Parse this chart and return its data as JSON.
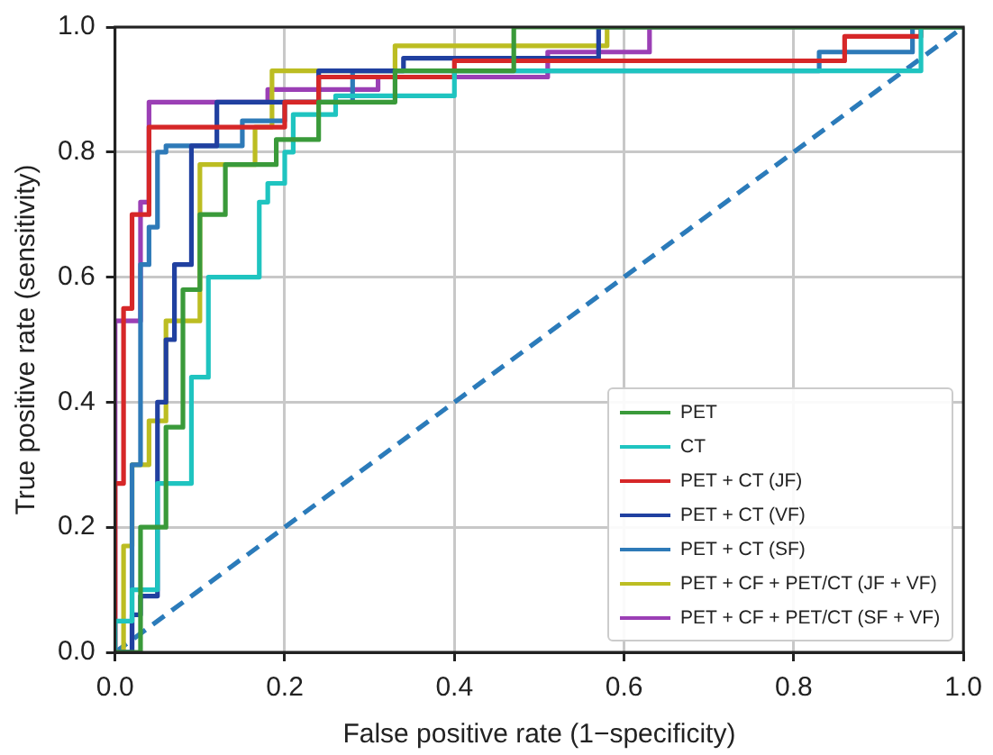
{
  "chart_data": {
    "type": "line",
    "xlabel": "False positive rate (1−specificity)",
    "ylabel": "True positive rate (sensitivity)",
    "xlim": [
      0,
      1
    ],
    "ylim": [
      0,
      1
    ],
    "xticks": [
      {
        "value": 0,
        "label": "0.0"
      },
      {
        "value": 0.2,
        "label": "0.2"
      },
      {
        "value": 0.4,
        "label": "0.4"
      },
      {
        "value": 0.6,
        "label": "0.6"
      },
      {
        "value": 0.8,
        "label": "0.8"
      },
      {
        "value": 1,
        "label": "1.0"
      }
    ],
    "yticks": [
      {
        "value": 0,
        "label": "0.0"
      },
      {
        "value": 0.2,
        "label": "0.2"
      },
      {
        "value": 0.4,
        "label": "0.4"
      },
      {
        "value": 0.6,
        "label": "0.6"
      },
      {
        "value": 0.8,
        "label": "0.8"
      },
      {
        "value": 1,
        "label": "1.0"
      }
    ],
    "grid": true,
    "legend": "bottom right",
    "marker": "none",
    "series": [
      {
        "name": "PET",
        "color": "#3a9a3a",
        "x": [
          0,
          0.03,
          0.03,
          0.06,
          0.06,
          0.08,
          0.08,
          0.1,
          0.1,
          0.13,
          0.13,
          0.19,
          0.19,
          0.24,
          0.24,
          0.33,
          0.33,
          0.47,
          0.47,
          1
        ],
        "values": [
          0,
          0,
          0.2,
          0.2,
          0.36,
          0.36,
          0.58,
          0.58,
          0.7,
          0.7,
          0.78,
          0.78,
          0.82,
          0.82,
          0.88,
          0.88,
          0.93,
          0.93,
          1,
          1
        ]
      },
      {
        "name": "CT",
        "color": "#1fc4c0",
        "x": [
          0,
          0,
          0.02,
          0.02,
          0.05,
          0.05,
          0.09,
          0.09,
          0.11,
          0.11,
          0.17,
          0.17,
          0.18,
          0.18,
          0.2,
          0.2,
          0.21,
          0.21,
          0.26,
          0.26,
          0.4,
          0.4,
          0.95,
          0.95,
          1
        ],
        "values": [
          0,
          0.05,
          0.05,
          0.1,
          0.1,
          0.27,
          0.27,
          0.44,
          0.44,
          0.6,
          0.6,
          0.72,
          0.72,
          0.75,
          0.75,
          0.8,
          0.8,
          0.86,
          0.86,
          0.89,
          0.89,
          0.93,
          0.93,
          1,
          1
        ]
      },
      {
        "name": "PET + CT (JF)",
        "color": "#d62728",
        "x": [
          0,
          0,
          0.01,
          0.01,
          0.02,
          0.02,
          0.04,
          0.04,
          0.2,
          0.2,
          0.24,
          0.24,
          0.4,
          0.4,
          0.86,
          0.86,
          0.95,
          0.95,
          1
        ],
        "values": [
          0,
          0.27,
          0.27,
          0.55,
          0.55,
          0.7,
          0.7,
          0.84,
          0.84,
          0.88,
          0.88,
          0.92,
          0.92,
          0.946,
          0.946,
          0.985,
          0.985,
          1,
          1
        ]
      },
      {
        "name": "PET + CT (VF)",
        "color": "#2040a0",
        "x": [
          0,
          0.02,
          0.02,
          0.03,
          0.03,
          0.05,
          0.05,
          0.06,
          0.06,
          0.07,
          0.07,
          0.09,
          0.09,
          0.12,
          0.12,
          0.24,
          0.24,
          0.34,
          0.34,
          0.57,
          0.57,
          1
        ],
        "values": [
          0,
          0,
          0.06,
          0.06,
          0.09,
          0.09,
          0.4,
          0.4,
          0.5,
          0.5,
          0.62,
          0.62,
          0.81,
          0.81,
          0.88,
          0.88,
          0.93,
          0.93,
          0.95,
          0.95,
          1,
          1
        ]
      },
      {
        "name": "PET + CT (SF)",
        "color": "#2e7ab8",
        "x": [
          0,
          0.02,
          0.02,
          0.03,
          0.03,
          0.04,
          0.04,
          0.05,
          0.05,
          0.06,
          0.06,
          0.15,
          0.15,
          0.2,
          0.2,
          0.28,
          0.28,
          0.83,
          0.83,
          0.94,
          0.94,
          1
        ],
        "values": [
          0,
          0,
          0.3,
          0.3,
          0.62,
          0.62,
          0.68,
          0.68,
          0.8,
          0.8,
          0.81,
          0.81,
          0.85,
          0.85,
          0.88,
          0.88,
          0.93,
          0.93,
          0.96,
          0.96,
          1,
          1
        ]
      },
      {
        "name": "PET + CF + PET/CT (JF + VF)",
        "color": "#bcbd22",
        "x": [
          0,
          0.01,
          0.01,
          0.02,
          0.02,
          0.04,
          0.04,
          0.06,
          0.06,
          0.1,
          0.1,
          0.165,
          0.165,
          0.185,
          0.185,
          0.33,
          0.33,
          0.58,
          0.58,
          1
        ],
        "values": [
          0,
          0,
          0.17,
          0.17,
          0.3,
          0.3,
          0.37,
          0.37,
          0.53,
          0.53,
          0.78,
          0.78,
          0.84,
          0.84,
          0.93,
          0.93,
          0.97,
          0.97,
          1,
          1
        ]
      },
      {
        "name": "PET + CF + PET/CT (SF + VF)",
        "color": "#9b3fb5",
        "x": [
          0,
          0,
          0.03,
          0.03,
          0.04,
          0.04,
          0.18,
          0.18,
          0.31,
          0.31,
          0.51,
          0.51,
          0.63,
          0.63,
          1
        ],
        "values": [
          0,
          0.53,
          0.53,
          0.72,
          0.72,
          0.88,
          0.88,
          0.9,
          0.9,
          0.92,
          0.92,
          0.96,
          0.96,
          1,
          1
        ]
      },
      {
        "color": "#2b7bba",
        "line_style": "dashed",
        "x": [
          0,
          1
        ],
        "values": [
          0,
          1
        ]
      }
    ]
  }
}
